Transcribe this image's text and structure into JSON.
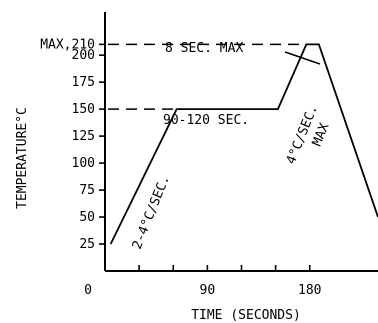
{
  "chart_data": {
    "type": "line",
    "title": "",
    "xlabel": "TIME (SECONDS)",
    "ylabel": "TEMPERATURE°C",
    "xlim": [
      0,
      240
    ],
    "ylim": [
      0,
      240
    ],
    "x_ticks": [
      {
        "value": 0,
        "label": "0"
      },
      {
        "value": 90,
        "label": "90"
      },
      {
        "value": 180,
        "label": "180"
      }
    ],
    "x_minor_ticks": [
      30,
      60,
      120,
      150
    ],
    "y_ticks": [
      {
        "value": 25,
        "label": "25"
      },
      {
        "value": 50,
        "label": "50"
      },
      {
        "value": 75,
        "label": "75"
      },
      {
        "value": 100,
        "label": "100"
      },
      {
        "value": 125,
        "label": "125"
      },
      {
        "value": 150,
        "label": "150"
      },
      {
        "value": 175,
        "label": "175"
      },
      {
        "value": 200,
        "label": "200"
      },
      {
        "value": 210,
        "label": "MAX,210"
      }
    ],
    "series": [
      {
        "x": [
          5,
          63,
          152,
          177,
          188,
          240
        ],
        "y": [
          25,
          150,
          150,
          210,
          210,
          50
        ]
      }
    ],
    "reference_lines": [
      {
        "value": 150,
        "x_from": 0,
        "x_to": 63
      },
      {
        "value": 210,
        "x_from": 0,
        "x_to": 177
      }
    ],
    "annotations": [
      {
        "text": "8 SEC. MAX"
      },
      {
        "text": "90-120 SEC."
      },
      {
        "text": "2-4°C/SEC."
      },
      {
        "text": "4°C/SEC."
      },
      {
        "text": "MAX"
      }
    ],
    "grid": false,
    "legend": "none"
  }
}
